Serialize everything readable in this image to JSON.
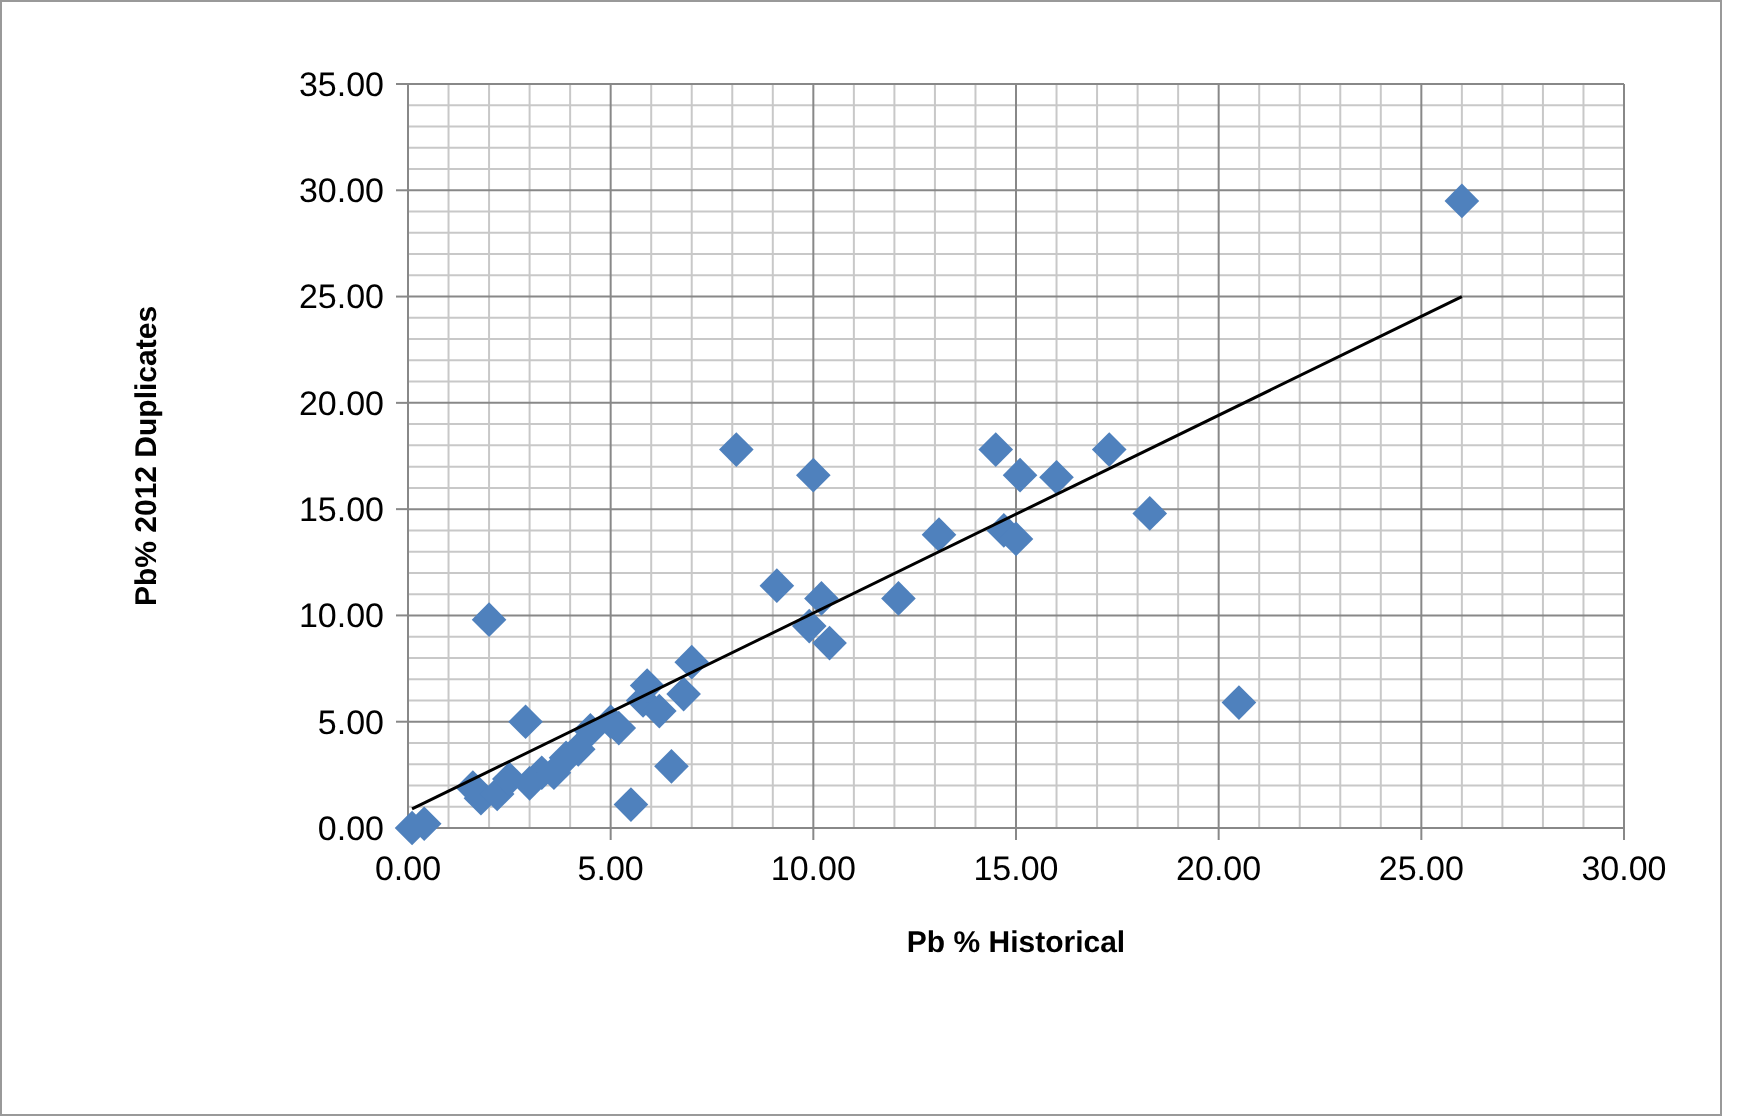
{
  "chart_data": {
    "type": "scatter",
    "xlabel": "Pb %  Historical",
    "ylabel": "Pb% 2012 Duplicates",
    "xlim": [
      0,
      30
    ],
    "ylim": [
      0,
      35
    ],
    "xticks": [
      {
        "value": 0,
        "label": "0.00"
      },
      {
        "value": 5,
        "label": "5.00"
      },
      {
        "value": 10,
        "label": "10.00"
      },
      {
        "value": 15,
        "label": "15.00"
      },
      {
        "value": 20,
        "label": "20.00"
      },
      {
        "value": 25,
        "label": "25.00"
      },
      {
        "value": 30,
        "label": "30.00"
      }
    ],
    "yticks": [
      {
        "value": 0,
        "label": "0.00"
      },
      {
        "value": 5,
        "label": "5.00"
      },
      {
        "value": 10,
        "label": "10.00"
      },
      {
        "value": 15,
        "label": "15.00"
      },
      {
        "value": 20,
        "label": "20.00"
      },
      {
        "value": 25,
        "label": "25.00"
      },
      {
        "value": 30,
        "label": "30.00"
      },
      {
        "value": 35,
        "label": "35.00"
      }
    ],
    "grid": true,
    "series": [
      {
        "marker": "diamond",
        "color": "#4f81bd",
        "x": [
          0.1,
          0.4,
          1.6,
          1.8,
          2.0,
          2.2,
          2.5,
          2.9,
          3.0,
          3.3,
          3.6,
          3.9,
          4.2,
          4.5,
          5.0,
          5.2,
          5.5,
          5.8,
          5.9,
          6.2,
          6.5,
          6.8,
          7.0,
          8.1,
          9.1,
          10.0,
          9.9,
          10.2,
          10.4,
          12.1,
          13.1,
          14.5,
          14.7,
          15.0,
          15.1,
          16.0,
          17.3,
          18.3,
          20.5,
          26.0
        ],
        "values": [
          0,
          0.2,
          1.9,
          1.4,
          9.8,
          1.6,
          2.3,
          5.0,
          2.1,
          2.6,
          2.6,
          3.3,
          3.7,
          4.6,
          5.0,
          4.7,
          1.1,
          6.0,
          6.7,
          5.5,
          2.9,
          6.3,
          7.8,
          17.8,
          11.4,
          16.6,
          9.5,
          10.8,
          8.7,
          10.8,
          13.8,
          17.8,
          14.0,
          13.6,
          16.6,
          16.5,
          17.8,
          14.8,
          5.9,
          29.5
        ]
      },
      {
        "type": "line",
        "color": "#000000",
        "x": [
          0.1,
          26.0
        ],
        "values": [
          0.9,
          25.0
        ]
      }
    ]
  }
}
